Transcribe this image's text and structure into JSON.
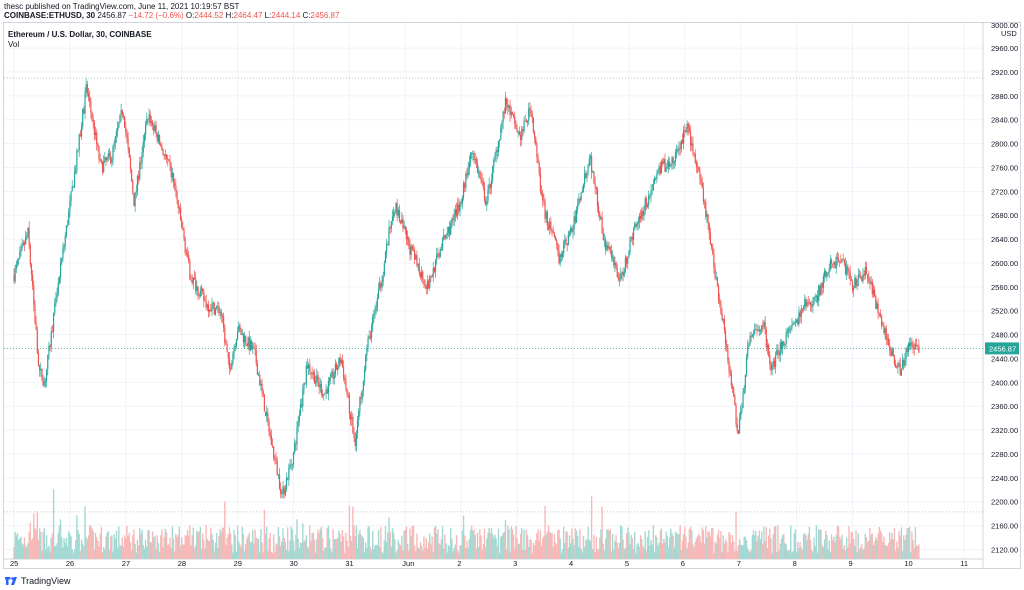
{
  "header": {
    "published_line": "thesc published on TradingView.com, June 11, 2021 10:19:57 BST",
    "symbol": "COINBASE:ETHUSD, 30",
    "last_price": "2456.87",
    "change": "−14.72 (−0.6%)",
    "o_label": "O:",
    "o_value": "2444.52",
    "h_label": "H:",
    "h_value": "2464.47",
    "l_label": "L:",
    "l_value": "2444.14",
    "c_label": "C:",
    "c_value": "2456.87"
  },
  "legend": {
    "series_title": "Ethereum / U.S. Dollar, 30, COINBASE",
    "volume_label": "Vol"
  },
  "footer": {
    "brand": "TradingView"
  },
  "colors": {
    "up": "#26a69a",
    "down": "#ef5350",
    "up_volume": "#a3d9d3",
    "down_volume": "#f7b9b8",
    "price_line": "#26a69a",
    "grid": "#f0f3fa",
    "axis_text": "#131722"
  },
  "chart_data": {
    "type": "candlestick",
    "interval": "30",
    "y_axis": {
      "currency_label": "USD",
      "top_label_partial": "3000.00",
      "ticks": [
        2120,
        2160,
        2200,
        2240,
        2280,
        2320,
        2360,
        2400,
        2440,
        2480,
        2520,
        2560,
        2600,
        2640,
        2680,
        2720,
        2760,
        2800,
        2840,
        2880,
        2920,
        2960
      ],
      "tick_labels": [
        "2120.00",
        "2160.00",
        "2200.00",
        "2240.00",
        "2280.00",
        "2320.00",
        "2360.00",
        "2400.00",
        "2440.00",
        "2480.00",
        "2520.00",
        "2560.00",
        "2600.00",
        "2640.00",
        "2680.00",
        "2720.00",
        "2760.00",
        "2800.00",
        "2840.00",
        "2880.00",
        "2920.00",
        "2960.00"
      ],
      "range": [
        2104,
        3002
      ]
    },
    "x_axis": {
      "tick_labels": [
        "25",
        "26",
        "27",
        "28",
        "29",
        "30",
        "31",
        "Jun",
        "2",
        "3",
        "4",
        "5",
        "6",
        "7",
        "8",
        "9",
        "10",
        "11"
      ]
    },
    "current_price": 2456.87,
    "current_price_label": "2456.87",
    "reference_levels": [
      2910,
      2183
    ],
    "close_path": [
      {
        "day": 0.0,
        "price": 2580
      },
      {
        "day": 0.25,
        "price": 2650
      },
      {
        "day": 0.45,
        "price": 2420
      },
      {
        "day": 0.55,
        "price": 2400
      },
      {
        "day": 0.8,
        "price": 2570
      },
      {
        "day": 1.1,
        "price": 2760
      },
      {
        "day": 1.3,
        "price": 2895
      },
      {
        "day": 1.55,
        "price": 2760
      },
      {
        "day": 1.75,
        "price": 2780
      },
      {
        "day": 1.95,
        "price": 2860
      },
      {
        "day": 2.15,
        "price": 2700
      },
      {
        "day": 2.4,
        "price": 2850
      },
      {
        "day": 2.65,
        "price": 2790
      },
      {
        "day": 2.85,
        "price": 2740
      },
      {
        "day": 3.15,
        "price": 2580
      },
      {
        "day": 3.45,
        "price": 2530
      },
      {
        "day": 3.7,
        "price": 2520
      },
      {
        "day": 3.85,
        "price": 2420
      },
      {
        "day": 4.0,
        "price": 2490
      },
      {
        "day": 4.3,
        "price": 2450
      },
      {
        "day": 4.6,
        "price": 2300
      },
      {
        "day": 4.8,
        "price": 2210
      },
      {
        "day": 5.0,
        "price": 2280
      },
      {
        "day": 5.25,
        "price": 2430
      },
      {
        "day": 5.55,
        "price": 2380
      },
      {
        "day": 5.85,
        "price": 2440
      },
      {
        "day": 6.1,
        "price": 2300
      },
      {
        "day": 6.3,
        "price": 2450
      },
      {
        "day": 6.55,
        "price": 2560
      },
      {
        "day": 6.8,
        "price": 2700
      },
      {
        "day": 7.1,
        "price": 2620
      },
      {
        "day": 7.4,
        "price": 2560
      },
      {
        "day": 7.65,
        "price": 2630
      },
      {
        "day": 7.95,
        "price": 2690
      },
      {
        "day": 8.2,
        "price": 2790
      },
      {
        "day": 8.45,
        "price": 2700
      },
      {
        "day": 8.8,
        "price": 2870
      },
      {
        "day": 9.05,
        "price": 2810
      },
      {
        "day": 9.25,
        "price": 2860
      },
      {
        "day": 9.45,
        "price": 2700
      },
      {
        "day": 9.75,
        "price": 2610
      },
      {
        "day": 10.0,
        "price": 2660
      },
      {
        "day": 10.3,
        "price": 2780
      },
      {
        "day": 10.55,
        "price": 2640
      },
      {
        "day": 10.85,
        "price": 2570
      },
      {
        "day": 11.1,
        "price": 2660
      },
      {
        "day": 11.35,
        "price": 2710
      },
      {
        "day": 11.55,
        "price": 2760
      },
      {
        "day": 11.8,
        "price": 2770
      },
      {
        "day": 12.05,
        "price": 2830
      },
      {
        "day": 12.35,
        "price": 2700
      },
      {
        "day": 12.55,
        "price": 2580
      },
      {
        "day": 12.75,
        "price": 2460
      },
      {
        "day": 12.95,
        "price": 2310
      },
      {
        "day": 13.15,
        "price": 2470
      },
      {
        "day": 13.4,
        "price": 2500
      },
      {
        "day": 13.55,
        "price": 2420
      },
      {
        "day": 13.75,
        "price": 2470
      },
      {
        "day": 13.95,
        "price": 2490
      },
      {
        "day": 14.15,
        "price": 2530
      },
      {
        "day": 14.35,
        "price": 2540
      },
      {
        "day": 14.55,
        "price": 2590
      },
      {
        "day": 14.8,
        "price": 2610
      },
      {
        "day": 15.0,
        "price": 2560
      },
      {
        "day": 15.25,
        "price": 2590
      },
      {
        "day": 15.45,
        "price": 2520
      },
      {
        "day": 15.65,
        "price": 2460
      },
      {
        "day": 15.85,
        "price": 2420
      },
      {
        "day": 16.05,
        "price": 2470
      },
      {
        "day": 16.2,
        "price": 2456.87
      }
    ]
  }
}
